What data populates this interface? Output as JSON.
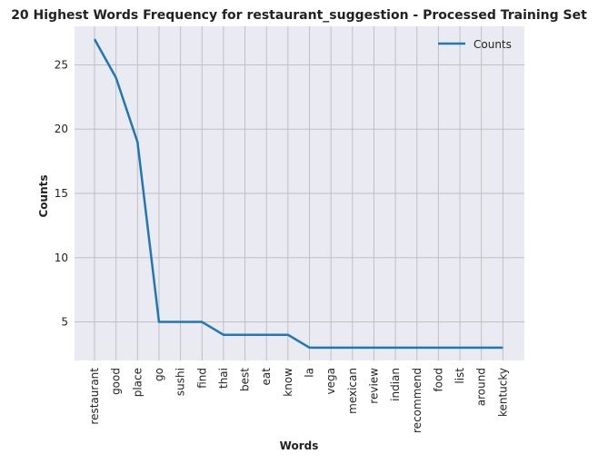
{
  "chart_data": {
    "type": "line",
    "title": "20 Highest Words Frequency for restaurant_suggestion - Processed Training Set",
    "xlabel": "Words",
    "ylabel": "Counts",
    "categories": [
      "restaurant",
      "good",
      "place",
      "go",
      "sushi",
      "find",
      "thai",
      "best",
      "eat",
      "know",
      "la",
      "vega",
      "mexican",
      "review",
      "indian",
      "recommend",
      "food",
      "list",
      "around",
      "kentucky"
    ],
    "series": [
      {
        "name": "Counts",
        "values": [
          27,
          24,
          19,
          5,
          5,
          5,
          4,
          4,
          4,
          4,
          3,
          3,
          3,
          3,
          3,
          3,
          3,
          3,
          3,
          3
        ],
        "color": "#1f77b4"
      }
    ],
    "ylim": [
      2,
      28
    ],
    "yticks": [
      5,
      10,
      15,
      20,
      25
    ],
    "grid": true,
    "legend_position": "top-right",
    "background_color": "#eaeaf2",
    "grid_color": "#c0c0c0"
  }
}
